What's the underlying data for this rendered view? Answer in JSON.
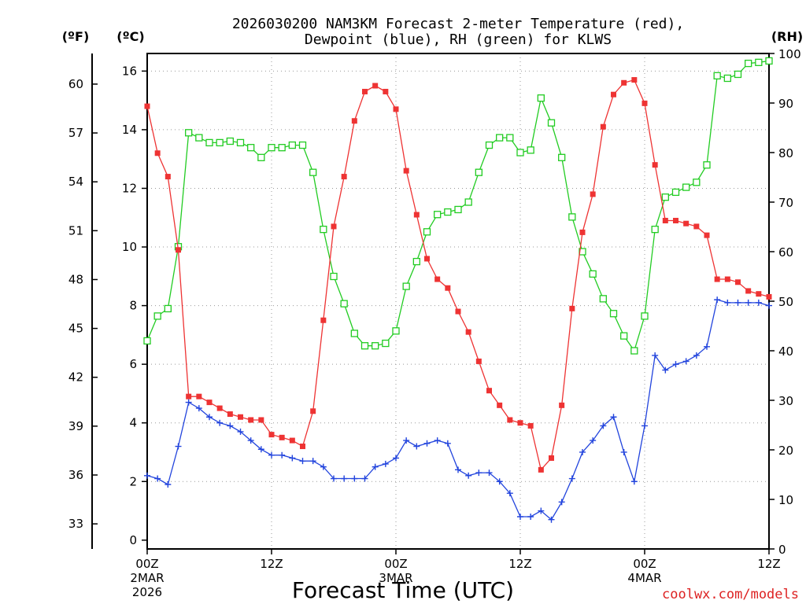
{
  "chart_data": {
    "type": "line",
    "title_line1": "2026030200 NAM3KM Forecast 2-meter Temperature (red),",
    "title_line2": "Dewpoint (blue), RH (green) for KLWS",
    "xlabel": "Forecast Time (UTC)",
    "credit": "coolwx.com/models",
    "unit_f": "(ºF)",
    "unit_c": "(ºC)",
    "unit_rh": "(RH)",
    "x_range_hours": [
      0,
      60
    ],
    "ylim_c": [
      -0.3,
      16.6
    ],
    "ylim_rh": [
      0,
      100
    ],
    "x_ticks": [
      {
        "hour": 0,
        "label": "00Z",
        "sub1": "2MAR",
        "sub2": "2026"
      },
      {
        "hour": 12,
        "label": "12Z",
        "sub1": "",
        "sub2": ""
      },
      {
        "hour": 24,
        "label": "00Z",
        "sub1": "3MAR",
        "sub2": ""
      },
      {
        "hour": 36,
        "label": "12Z",
        "sub1": "",
        "sub2": ""
      },
      {
        "hour": 48,
        "label": "00Z",
        "sub1": "4MAR",
        "sub2": ""
      },
      {
        "hour": 60,
        "label": "12Z",
        "sub1": "",
        "sub2": ""
      }
    ],
    "c_ticks": [
      0,
      2,
      4,
      6,
      8,
      10,
      12,
      14,
      16
    ],
    "f_ticks": [
      33,
      36,
      39,
      42,
      45,
      48,
      51,
      54,
      57,
      60
    ],
    "rh_ticks": [
      0,
      10,
      20,
      30,
      40,
      50,
      60,
      70,
      80,
      90,
      100
    ],
    "series": [
      {
        "name": "Temperature (°C)",
        "color": "#ee3333",
        "marker": "filled-square",
        "axis": "c",
        "values": [
          14.8,
          13.2,
          12.4,
          9.9,
          4.9,
          4.9,
          4.7,
          4.5,
          4.3,
          4.2,
          4.1,
          4.1,
          3.6,
          3.5,
          3.4,
          3.2,
          4.4,
          7.5,
          10.7,
          12.4,
          14.3,
          15.3,
          15.5,
          15.3,
          14.7,
          12.6,
          11.1,
          9.6,
          8.9,
          8.6,
          7.8,
          7.1,
          6.1,
          5.1,
          4.6,
          4.1,
          4.0,
          3.9,
          2.4,
          2.8,
          4.6,
          7.9,
          10.5,
          11.8,
          14.1,
          15.2,
          15.6,
          15.7,
          14.9,
          12.8,
          10.9,
          10.9,
          10.8,
          10.7,
          10.4,
          8.9,
          8.9,
          8.8,
          8.5,
          8.4,
          8.3
        ]
      },
      {
        "name": "Dewpoint (°C)",
        "color": "#2244dd",
        "marker": "plus",
        "axis": "c",
        "values": [
          2.2,
          2.1,
          1.9,
          3.2,
          4.7,
          4.5,
          4.2,
          4.0,
          3.9,
          3.7,
          3.4,
          3.1,
          2.9,
          2.9,
          2.8,
          2.7,
          2.7,
          2.5,
          2.1,
          2.1,
          2.1,
          2.1,
          2.5,
          2.6,
          2.8,
          3.4,
          3.2,
          3.3,
          3.4,
          3.3,
          2.4,
          2.2,
          2.3,
          2.3,
          2.0,
          1.6,
          0.8,
          0.8,
          1.0,
          0.7,
          1.3,
          2.1,
          3.0,
          3.4,
          3.9,
          4.2,
          3.0,
          2.0,
          3.9,
          6.3,
          5.8,
          6.0,
          6.1,
          6.3,
          6.6,
          8.2,
          8.1,
          8.1,
          8.1,
          8.1,
          8.0
        ]
      },
      {
        "name": "Relative Humidity (%)",
        "color": "#22cc22",
        "marker": "open-square",
        "axis": "rh",
        "values": [
          42,
          47,
          48.5,
          61,
          84,
          83,
          82,
          82,
          82.3,
          82,
          81,
          79,
          81,
          81,
          81.5,
          81.5,
          76,
          64.5,
          55,
          49.5,
          43.5,
          41,
          41,
          41.5,
          44,
          53,
          58,
          64,
          67.5,
          68,
          68.5,
          70,
          76,
          81.5,
          83,
          83,
          80,
          80.5,
          91,
          86,
          79,
          67,
          60,
          55.5,
          50.5,
          47.5,
          43,
          40,
          47,
          64.5,
          71,
          72,
          73,
          74,
          77.5,
          95.5,
          95,
          95.8,
          98,
          98.2,
          98.5
        ]
      }
    ]
  }
}
